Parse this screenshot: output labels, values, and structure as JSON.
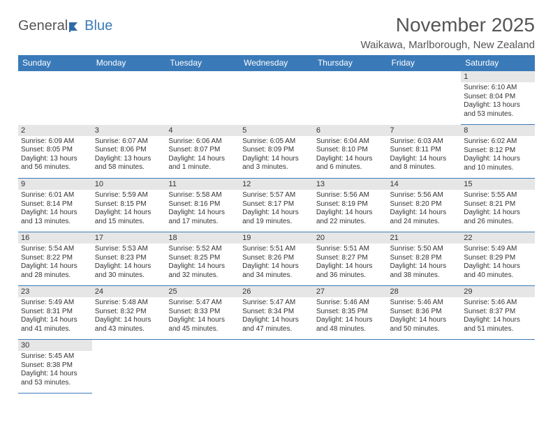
{
  "brand": {
    "general": "General",
    "blue": "Blue",
    "logo_color": "#2f6aa8"
  },
  "title": "November 2025",
  "subtitle": "Waikawa, Marlborough, New Zealand",
  "colors": {
    "header_bg": "#3a7ab8",
    "header_text": "#ffffff",
    "daynum_bg": "#e6e6e6",
    "border": "#3a7ab8",
    "text": "#333333",
    "title_text": "#555555"
  },
  "day_labels": [
    "Sunday",
    "Monday",
    "Tuesday",
    "Wednesday",
    "Thursday",
    "Friday",
    "Saturday"
  ],
  "weeks": [
    [
      {
        "blank": true
      },
      {
        "blank": true
      },
      {
        "blank": true
      },
      {
        "blank": true
      },
      {
        "blank": true
      },
      {
        "blank": true
      },
      {
        "n": "1",
        "sunrise": "6:10 AM",
        "sunset": "8:04 PM",
        "daylight": "13 hours and 53 minutes."
      }
    ],
    [
      {
        "n": "2",
        "sunrise": "6:09 AM",
        "sunset": "8:05 PM",
        "daylight": "13 hours and 56 minutes."
      },
      {
        "n": "3",
        "sunrise": "6:07 AM",
        "sunset": "8:06 PM",
        "daylight": "13 hours and 58 minutes."
      },
      {
        "n": "4",
        "sunrise": "6:06 AM",
        "sunset": "8:07 PM",
        "daylight": "14 hours and 1 minute."
      },
      {
        "n": "5",
        "sunrise": "6:05 AM",
        "sunset": "8:09 PM",
        "daylight": "14 hours and 3 minutes."
      },
      {
        "n": "6",
        "sunrise": "6:04 AM",
        "sunset": "8:10 PM",
        "daylight": "14 hours and 6 minutes."
      },
      {
        "n": "7",
        "sunrise": "6:03 AM",
        "sunset": "8:11 PM",
        "daylight": "14 hours and 8 minutes."
      },
      {
        "n": "8",
        "sunrise": "6:02 AM",
        "sunset": "8:12 PM",
        "daylight": "14 hours and 10 minutes."
      }
    ],
    [
      {
        "n": "9",
        "sunrise": "6:01 AM",
        "sunset": "8:14 PM",
        "daylight": "14 hours and 13 minutes."
      },
      {
        "n": "10",
        "sunrise": "5:59 AM",
        "sunset": "8:15 PM",
        "daylight": "14 hours and 15 minutes."
      },
      {
        "n": "11",
        "sunrise": "5:58 AM",
        "sunset": "8:16 PM",
        "daylight": "14 hours and 17 minutes."
      },
      {
        "n": "12",
        "sunrise": "5:57 AM",
        "sunset": "8:17 PM",
        "daylight": "14 hours and 19 minutes."
      },
      {
        "n": "13",
        "sunrise": "5:56 AM",
        "sunset": "8:19 PM",
        "daylight": "14 hours and 22 minutes."
      },
      {
        "n": "14",
        "sunrise": "5:56 AM",
        "sunset": "8:20 PM",
        "daylight": "14 hours and 24 minutes."
      },
      {
        "n": "15",
        "sunrise": "5:55 AM",
        "sunset": "8:21 PM",
        "daylight": "14 hours and 26 minutes."
      }
    ],
    [
      {
        "n": "16",
        "sunrise": "5:54 AM",
        "sunset": "8:22 PM",
        "daylight": "14 hours and 28 minutes."
      },
      {
        "n": "17",
        "sunrise": "5:53 AM",
        "sunset": "8:23 PM",
        "daylight": "14 hours and 30 minutes."
      },
      {
        "n": "18",
        "sunrise": "5:52 AM",
        "sunset": "8:25 PM",
        "daylight": "14 hours and 32 minutes."
      },
      {
        "n": "19",
        "sunrise": "5:51 AM",
        "sunset": "8:26 PM",
        "daylight": "14 hours and 34 minutes."
      },
      {
        "n": "20",
        "sunrise": "5:51 AM",
        "sunset": "8:27 PM",
        "daylight": "14 hours and 36 minutes."
      },
      {
        "n": "21",
        "sunrise": "5:50 AM",
        "sunset": "8:28 PM",
        "daylight": "14 hours and 38 minutes."
      },
      {
        "n": "22",
        "sunrise": "5:49 AM",
        "sunset": "8:29 PM",
        "daylight": "14 hours and 40 minutes."
      }
    ],
    [
      {
        "n": "23",
        "sunrise": "5:49 AM",
        "sunset": "8:31 PM",
        "daylight": "14 hours and 41 minutes."
      },
      {
        "n": "24",
        "sunrise": "5:48 AM",
        "sunset": "8:32 PM",
        "daylight": "14 hours and 43 minutes."
      },
      {
        "n": "25",
        "sunrise": "5:47 AM",
        "sunset": "8:33 PM",
        "daylight": "14 hours and 45 minutes."
      },
      {
        "n": "26",
        "sunrise": "5:47 AM",
        "sunset": "8:34 PM",
        "daylight": "14 hours and 47 minutes."
      },
      {
        "n": "27",
        "sunrise": "5:46 AM",
        "sunset": "8:35 PM",
        "daylight": "14 hours and 48 minutes."
      },
      {
        "n": "28",
        "sunrise": "5:46 AM",
        "sunset": "8:36 PM",
        "daylight": "14 hours and 50 minutes."
      },
      {
        "n": "29",
        "sunrise": "5:46 AM",
        "sunset": "8:37 PM",
        "daylight": "14 hours and 51 minutes."
      }
    ],
    [
      {
        "n": "30",
        "sunrise": "5:45 AM",
        "sunset": "8:38 PM",
        "daylight": "14 hours and 53 minutes."
      },
      {
        "blank": true
      },
      {
        "blank": true
      },
      {
        "blank": true
      },
      {
        "blank": true
      },
      {
        "blank": true
      },
      {
        "blank": true
      }
    ]
  ]
}
